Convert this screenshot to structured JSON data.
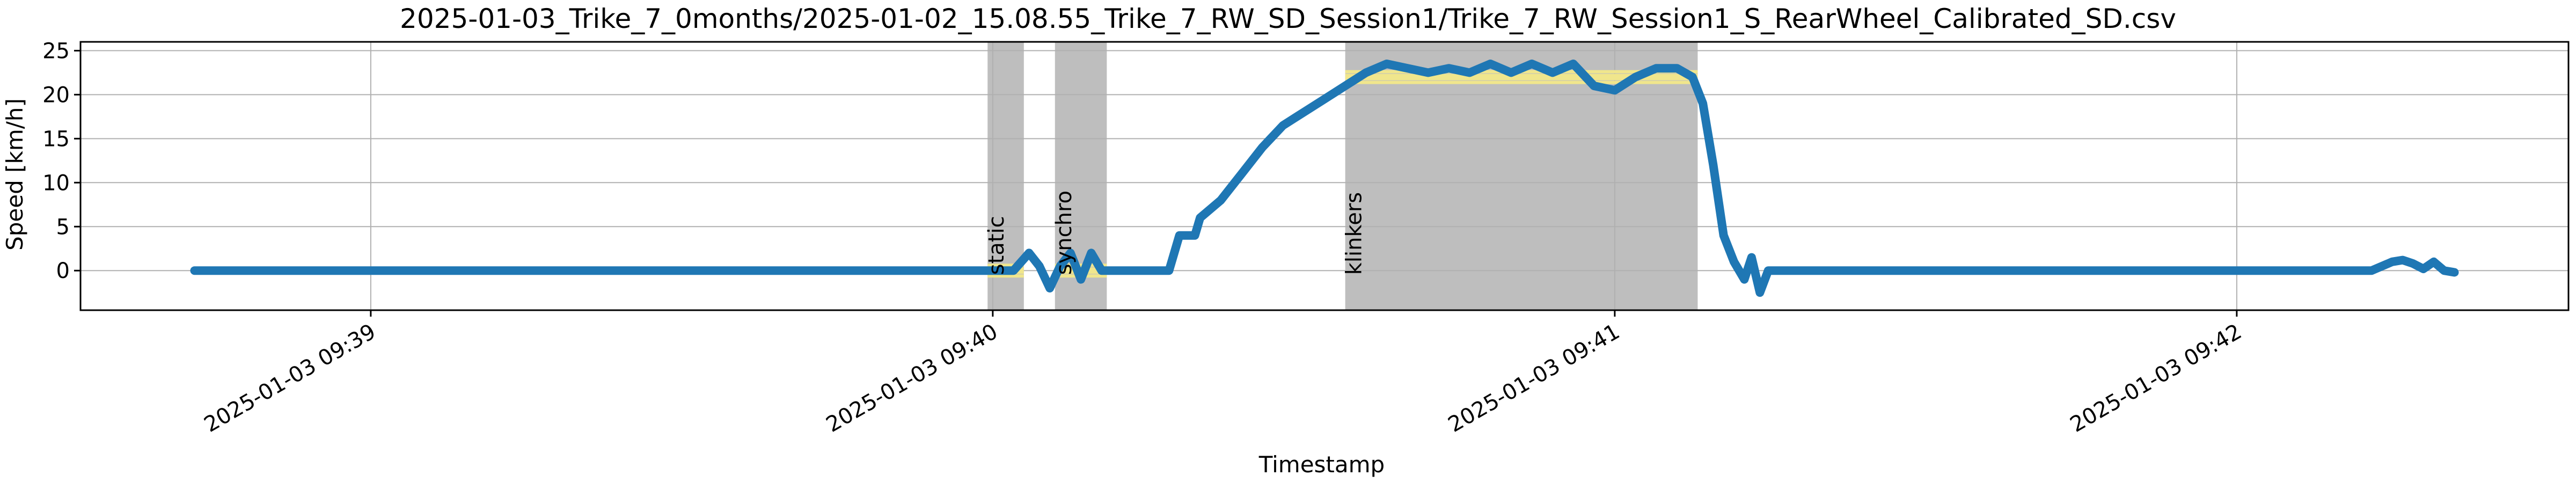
{
  "chart_data": {
    "type": "line",
    "title": "2025-01-03_Trike_7_0months/2025-01-02_15.08.55_Trike_7_RW_SD_Session1/Trike_7_RW_Session1_S_RearWheel_Calibrated_SD.csv",
    "xlabel": "Timestamp",
    "ylabel": "Speed [km/h]",
    "x_axis_type": "time",
    "xlim": [
      "2025-01-03 09:38:32",
      "2025-01-03 09:42:32"
    ],
    "ylim": [
      -4.5,
      26
    ],
    "x_ticks": [
      {
        "t": "2025-01-03 09:39:00",
        "label": "2025-01-03 09:39"
      },
      {
        "t": "2025-01-03 09:40:00",
        "label": "2025-01-03 09:40"
      },
      {
        "t": "2025-01-03 09:41:00",
        "label": "2025-01-03 09:41"
      },
      {
        "t": "2025-01-03 09:42:00",
        "label": "2025-01-03 09:42"
      }
    ],
    "y_ticks": [
      0,
      5,
      10,
      15,
      20,
      25
    ],
    "grid": true,
    "line_color": "#1f77b4",
    "region_color": "#bebebe",
    "mean_line_color": "#f0e68c",
    "regions": [
      {
        "label": "static",
        "start": "2025-01-03 09:39:59.5",
        "end": "2025-01-03 09:40:03.0",
        "mean": 0.0
      },
      {
        "label": "synchro",
        "start": "2025-01-03 09:40:06.0",
        "end": "2025-01-03 09:40:11.0",
        "mean": 0.0
      },
      {
        "label": "klinkers",
        "start": "2025-01-03 09:40:34.0",
        "end": "2025-01-03 09:41:08.0",
        "mean": 22.0
      }
    ],
    "series": [
      {
        "x": [
          "2025-01-03 09:38:43",
          "2025-01-03 09:39:00",
          "2025-01-03 09:39:30",
          "2025-01-03 09:39:55",
          "2025-01-03 09:40:00",
          "2025-01-03 09:40:02",
          "2025-01-03 09:40:03.5",
          "2025-01-03 09:40:04.5",
          "2025-01-03 09:40:05.5",
          "2025-01-03 09:40:06.5",
          "2025-01-03 09:40:07.5",
          "2025-01-03 09:40:08.5",
          "2025-01-03 09:40:09.5",
          "2025-01-03 09:40:10.5",
          "2025-01-03 09:40:11.5",
          "2025-01-03 09:40:14",
          "2025-01-03 09:40:17",
          "2025-01-03 09:40:18",
          "2025-01-03 09:40:19.5",
          "2025-01-03 09:40:20",
          "2025-01-03 09:40:22",
          "2025-01-03 09:40:24",
          "2025-01-03 09:40:26",
          "2025-01-03 09:40:28",
          "2025-01-03 09:40:30",
          "2025-01-03 09:40:32",
          "2025-01-03 09:40:34",
          "2025-01-03 09:40:36",
          "2025-01-03 09:40:38",
          "2025-01-03 09:40:40",
          "2025-01-03 09:40:42",
          "2025-01-03 09:40:44",
          "2025-01-03 09:40:46",
          "2025-01-03 09:40:48",
          "2025-01-03 09:40:50",
          "2025-01-03 09:40:52",
          "2025-01-03 09:40:54",
          "2025-01-03 09:40:56",
          "2025-01-03 09:40:58",
          "2025-01-03 09:41:00",
          "2025-01-03 09:41:02",
          "2025-01-03 09:41:04",
          "2025-01-03 09:41:06",
          "2025-01-03 09:41:07.5",
          "2025-01-03 09:41:08.5",
          "2025-01-03 09:41:09.5",
          "2025-01-03 09:41:10.5",
          "2025-01-03 09:41:11.5",
          "2025-01-03 09:41:12.5",
          "2025-01-03 09:41:13.2",
          "2025-01-03 09:41:14",
          "2025-01-03 09:41:14.8",
          "2025-01-03 09:41:15.5",
          "2025-01-03 09:41:16.5",
          "2025-01-03 09:41:30",
          "2025-01-03 09:41:45",
          "2025-01-03 09:42:00",
          "2025-01-03 09:42:10",
          "2025-01-03 09:42:13",
          "2025-01-03 09:42:15",
          "2025-01-03 09:42:16",
          "2025-01-03 09:42:17",
          "2025-01-03 09:42:18",
          "2025-01-03 09:42:19",
          "2025-01-03 09:42:20",
          "2025-01-03 09:42:21"
        ],
        "y": [
          0.0,
          0.0,
          0.0,
          0.0,
          0.0,
          0.0,
          2.0,
          0.5,
          -2.0,
          0.5,
          2.0,
          -1.0,
          2.0,
          0.0,
          0.0,
          0.0,
          0.0,
          4.0,
          4.0,
          6.0,
          8.0,
          11.0,
          14.0,
          16.5,
          18.0,
          19.5,
          21.0,
          22.5,
          23.5,
          23.0,
          22.5,
          23.0,
          22.5,
          23.5,
          22.5,
          23.5,
          22.5,
          23.5,
          21.0,
          20.5,
          22.0,
          23.0,
          23.0,
          22.0,
          19.0,
          12.0,
          4.0,
          1.0,
          -1.0,
          1.5,
          -2.5,
          0.0,
          0.0,
          0.0,
          0.0,
          0.0,
          0.0,
          0.0,
          0.0,
          1.0,
          1.2,
          0.8,
          0.2,
          1.0,
          0.0,
          -0.2
        ]
      }
    ]
  }
}
